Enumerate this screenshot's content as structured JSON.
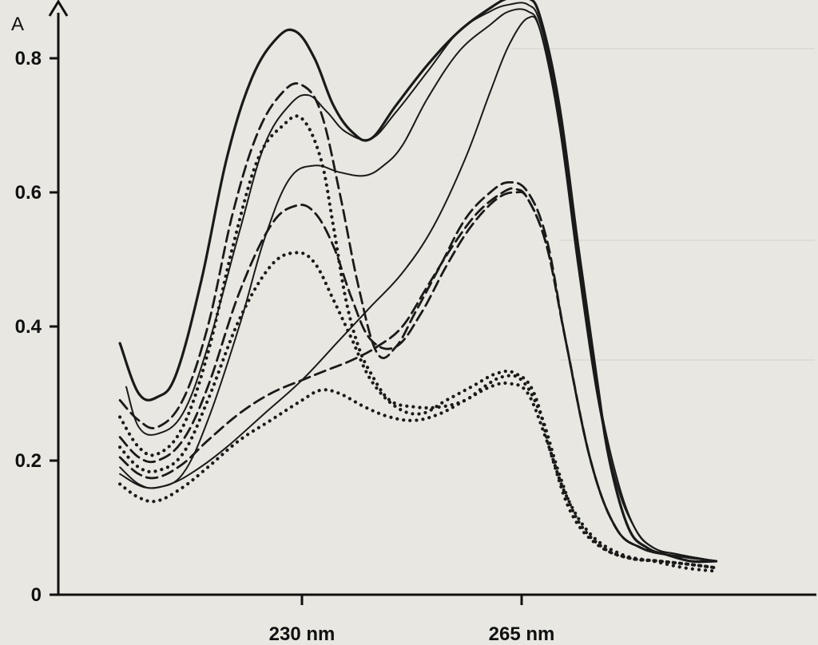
{
  "chart_data": {
    "type": "line",
    "ylabel": "A",
    "xlabel": "",
    "ylim": [
      0,
      0.9
    ],
    "xlim": [
      195,
      300
    ],
    "yticks": [
      {
        "value": 0,
        "label": "0"
      },
      {
        "value": 0.2,
        "label": "0.2"
      },
      {
        "value": 0.4,
        "label": "0.4"
      },
      {
        "value": 0.6,
        "label": "0.6"
      },
      {
        "value": 0.8,
        "label": "0.8"
      }
    ],
    "xticks": [
      {
        "value": 230,
        "label": "230 nm"
      },
      {
        "value": 265,
        "label": "265 nm"
      }
    ],
    "grid": false,
    "series": [
      {
        "style": "solid",
        "width": 3.2,
        "color": "#1a1a1a",
        "points": [
          [
            201,
            0.375
          ],
          [
            204,
            0.3
          ],
          [
            207,
            0.295
          ],
          [
            210,
            0.33
          ],
          [
            214,
            0.47
          ],
          [
            218,
            0.65
          ],
          [
            222,
            0.77
          ],
          [
            226,
            0.83
          ],
          [
            229,
            0.84
          ],
          [
            232,
            0.8
          ],
          [
            235,
            0.73
          ],
          [
            238,
            0.69
          ],
          [
            241,
            0.68
          ],
          [
            245,
            0.73
          ],
          [
            250,
            0.79
          ],
          [
            255,
            0.84
          ],
          [
            260,
            0.875
          ],
          [
            263,
            0.89
          ],
          [
            266,
            0.89
          ],
          [
            268,
            0.86
          ],
          [
            271,
            0.73
          ],
          [
            274,
            0.52
          ],
          [
            277,
            0.32
          ],
          [
            279,
            0.2
          ],
          [
            282,
            0.1
          ],
          [
            285,
            0.07
          ],
          [
            288,
            0.06
          ],
          [
            292,
            0.05
          ],
          [
            296,
            0.05
          ]
        ]
      },
      {
        "style": "solid",
        "width": 2.0,
        "color": "#1a1a1a",
        "points": [
          [
            202,
            0.31
          ],
          [
            204,
            0.25
          ],
          [
            207,
            0.24
          ],
          [
            211,
            0.27
          ],
          [
            215,
            0.37
          ],
          [
            220,
            0.54
          ],
          [
            224,
            0.67
          ],
          [
            228,
            0.73
          ],
          [
            231,
            0.745
          ],
          [
            234,
            0.72
          ],
          [
            237,
            0.69
          ],
          [
            241,
            0.68
          ],
          [
            245,
            0.72
          ],
          [
            250,
            0.78
          ],
          [
            255,
            0.84
          ],
          [
            260,
            0.87
          ],
          [
            263,
            0.88
          ],
          [
            266,
            0.88
          ],
          [
            268,
            0.85
          ],
          [
            271,
            0.72
          ],
          [
            274,
            0.51
          ],
          [
            277,
            0.31
          ],
          [
            280,
            0.18
          ],
          [
            283,
            0.1
          ],
          [
            286,
            0.07
          ],
          [
            290,
            0.06
          ],
          [
            296,
            0.05
          ]
        ]
      },
      {
        "style": "solid",
        "width": 2.0,
        "color": "#1a1a1a",
        "points": [
          [
            201,
            0.19
          ],
          [
            204,
            0.165
          ],
          [
            207,
            0.16
          ],
          [
            211,
            0.18
          ],
          [
            215,
            0.26
          ],
          [
            220,
            0.4
          ],
          [
            224,
            0.53
          ],
          [
            228,
            0.62
          ],
          [
            232,
            0.64
          ],
          [
            236,
            0.63
          ],
          [
            240,
            0.625
          ],
          [
            243,
            0.64
          ],
          [
            246,
            0.67
          ],
          [
            250,
            0.74
          ],
          [
            255,
            0.81
          ],
          [
            260,
            0.85
          ],
          [
            263,
            0.87
          ],
          [
            266,
            0.87
          ],
          [
            268,
            0.84
          ],
          [
            271,
            0.7
          ],
          [
            274,
            0.49
          ],
          [
            277,
            0.3
          ],
          [
            280,
            0.17
          ],
          [
            283,
            0.1
          ],
          [
            286,
            0.07
          ],
          [
            290,
            0.06
          ],
          [
            296,
            0.05
          ]
        ]
      },
      {
        "style": "solid",
        "width": 2.0,
        "color": "#1a1a1a",
        "points": [
          [
            201,
            0.18
          ],
          [
            205,
            0.16
          ],
          [
            209,
            0.165
          ],
          [
            213,
            0.185
          ],
          [
            218,
            0.22
          ],
          [
            224,
            0.27
          ],
          [
            230,
            0.32
          ],
          [
            236,
            0.38
          ],
          [
            241,
            0.43
          ],
          [
            246,
            0.48
          ],
          [
            251,
            0.55
          ],
          [
            256,
            0.65
          ],
          [
            260,
            0.75
          ],
          [
            263,
            0.82
          ],
          [
            266,
            0.86
          ],
          [
            268,
            0.84
          ],
          [
            271,
            0.71
          ],
          [
            274,
            0.5
          ],
          [
            277,
            0.31
          ],
          [
            280,
            0.18
          ],
          [
            283,
            0.1
          ],
          [
            286,
            0.07
          ],
          [
            290,
            0.06
          ],
          [
            296,
            0.05
          ]
        ]
      },
      {
        "style": "dashed",
        "width": 2.8,
        "color": "#1a1a1a",
        "points": [
          [
            201,
            0.29
          ],
          [
            204,
            0.26
          ],
          [
            207,
            0.25
          ],
          [
            211,
            0.29
          ],
          [
            215,
            0.4
          ],
          [
            219,
            0.57
          ],
          [
            223,
            0.69
          ],
          [
            227,
            0.75
          ],
          [
            230,
            0.76
          ],
          [
            233,
            0.72
          ],
          [
            236,
            0.6
          ],
          [
            239,
            0.46
          ],
          [
            242,
            0.36
          ],
          [
            245,
            0.37
          ],
          [
            248,
            0.42
          ],
          [
            252,
            0.49
          ],
          [
            256,
            0.56
          ],
          [
            260,
            0.6
          ],
          [
            263,
            0.615
          ],
          [
            266,
            0.6
          ],
          [
            269,
            0.53
          ],
          [
            272,
            0.38
          ],
          [
            276,
            0.2
          ],
          [
            280,
            0.1
          ],
          [
            284,
            0.07
          ],
          [
            288,
            0.06
          ],
          [
            292,
            0.055
          ],
          [
            296,
            0.05
          ]
        ]
      },
      {
        "style": "dashed",
        "width": 2.8,
        "color": "#1a1a1a",
        "points": [
          [
            201,
            0.235
          ],
          [
            204,
            0.205
          ],
          [
            207,
            0.2
          ],
          [
            211,
            0.23
          ],
          [
            215,
            0.31
          ],
          [
            220,
            0.45
          ],
          [
            225,
            0.55
          ],
          [
            229,
            0.58
          ],
          [
            232,
            0.57
          ],
          [
            235,
            0.52
          ],
          [
            238,
            0.44
          ],
          [
            241,
            0.38
          ],
          [
            245,
            0.37
          ],
          [
            249,
            0.42
          ],
          [
            253,
            0.49
          ],
          [
            257,
            0.55
          ],
          [
            261,
            0.59
          ],
          [
            264,
            0.6
          ],
          [
            266,
            0.59
          ],
          [
            269,
            0.52
          ],
          [
            272,
            0.38
          ],
          [
            276,
            0.2
          ],
          [
            280,
            0.1
          ],
          [
            284,
            0.07
          ],
          [
            288,
            0.06
          ],
          [
            292,
            0.055
          ],
          [
            296,
            0.05
          ]
        ]
      },
      {
        "style": "dashed",
        "width": 2.8,
        "color": "#1a1a1a",
        "points": [
          [
            201,
            0.205
          ],
          [
            204,
            0.18
          ],
          [
            207,
            0.175
          ],
          [
            211,
            0.195
          ],
          [
            215,
            0.23
          ],
          [
            220,
            0.27
          ],
          [
            225,
            0.3
          ],
          [
            230,
            0.32
          ],
          [
            234,
            0.335
          ],
          [
            238,
            0.35
          ],
          [
            242,
            0.37
          ],
          [
            246,
            0.4
          ],
          [
            250,
            0.46
          ],
          [
            254,
            0.52
          ],
          [
            258,
            0.57
          ],
          [
            262,
            0.6
          ],
          [
            264,
            0.605
          ],
          [
            266,
            0.59
          ],
          [
            269,
            0.52
          ],
          [
            272,
            0.38
          ],
          [
            276,
            0.2
          ],
          [
            280,
            0.1
          ],
          [
            284,
            0.07
          ],
          [
            288,
            0.06
          ],
          [
            292,
            0.055
          ],
          [
            296,
            0.05
          ]
        ]
      },
      {
        "style": "dotted",
        "width": 4.2,
        "color": "#1a1a1a",
        "points": [
          [
            201,
            0.265
          ],
          [
            204,
            0.22
          ],
          [
            207,
            0.21
          ],
          [
            211,
            0.25
          ],
          [
            215,
            0.36
          ],
          [
            219,
            0.52
          ],
          [
            223,
            0.65
          ],
          [
            227,
            0.7
          ],
          [
            230,
            0.71
          ],
          [
            233,
            0.65
          ],
          [
            235,
            0.55
          ],
          [
            237,
            0.44
          ],
          [
            239,
            0.37
          ],
          [
            241,
            0.33
          ],
          [
            244,
            0.29
          ],
          [
            248,
            0.28
          ],
          [
            252,
            0.28
          ],
          [
            256,
            0.29
          ],
          [
            259,
            0.31
          ],
          [
            262,
            0.325
          ],
          [
            265,
            0.32
          ],
          [
            268,
            0.27
          ],
          [
            271,
            0.18
          ],
          [
            274,
            0.11
          ],
          [
            278,
            0.07
          ],
          [
            282,
            0.055
          ],
          [
            287,
            0.05
          ],
          [
            292,
            0.045
          ],
          [
            296,
            0.04
          ]
        ]
      },
      {
        "style": "dotted",
        "width": 4.2,
        "color": "#1a1a1a",
        "points": [
          [
            201,
            0.22
          ],
          [
            204,
            0.19
          ],
          [
            207,
            0.185
          ],
          [
            211,
            0.21
          ],
          [
            215,
            0.29
          ],
          [
            220,
            0.41
          ],
          [
            225,
            0.49
          ],
          [
            229,
            0.51
          ],
          [
            232,
            0.495
          ],
          [
            235,
            0.44
          ],
          [
            238,
            0.38
          ],
          [
            241,
            0.32
          ],
          [
            245,
            0.28
          ],
          [
            249,
            0.27
          ],
          [
            253,
            0.29
          ],
          [
            257,
            0.31
          ],
          [
            261,
            0.33
          ],
          [
            264,
            0.33
          ],
          [
            267,
            0.3
          ],
          [
            270,
            0.2
          ],
          [
            273,
            0.12
          ],
          [
            277,
            0.075
          ],
          [
            282,
            0.055
          ],
          [
            287,
            0.05
          ],
          [
            292,
            0.045
          ],
          [
            296,
            0.04
          ]
        ]
      },
      {
        "style": "dotted",
        "width": 4.2,
        "color": "#1a1a1a",
        "points": [
          [
            201,
            0.165
          ],
          [
            204,
            0.145
          ],
          [
            207,
            0.14
          ],
          [
            211,
            0.16
          ],
          [
            215,
            0.19
          ],
          [
            220,
            0.23
          ],
          [
            225,
            0.26
          ],
          [
            230,
            0.29
          ],
          [
            233,
            0.305
          ],
          [
            236,
            0.3
          ],
          [
            240,
            0.28
          ],
          [
            244,
            0.265
          ],
          [
            248,
            0.26
          ],
          [
            252,
            0.27
          ],
          [
            256,
            0.29
          ],
          [
            260,
            0.31
          ],
          [
            263,
            0.315
          ],
          [
            266,
            0.3
          ],
          [
            269,
            0.23
          ],
          [
            272,
            0.15
          ],
          [
            276,
            0.09
          ],
          [
            281,
            0.06
          ],
          [
            286,
            0.05
          ],
          [
            291,
            0.04
          ],
          [
            296,
            0.035
          ]
        ]
      }
    ]
  }
}
